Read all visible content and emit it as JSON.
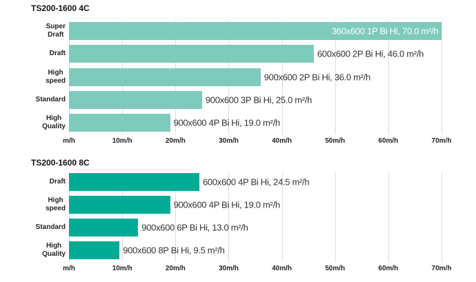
{
  "chart_data": [
    {
      "type": "bar",
      "orientation": "horizontal",
      "title": "TS200-1600 4C",
      "categories": [
        "Super Draft",
        "Draft",
        "High speed",
        "Standard",
        "High Quality"
      ],
      "values": [
        70,
        46,
        36,
        25,
        19
      ],
      "value_labels": [
        "360x600 1P Bi Hi, 70.0 m²/h",
        "600x600 2P Bi Hi, 46.0 m²/h",
        "900x600 2P Bi Hi, 36.0 m²/h",
        "900x600 3P Bi Hi, 25.0 m²/h",
        "900x600 4P Bi Hi, 19.0 m²/h"
      ],
      "color": "#7ecbbb",
      "xlim": [
        0,
        70
      ],
      "xticks": [
        {
          "value": 0,
          "label": "m/h"
        },
        {
          "value": 10,
          "label": "10m/h"
        },
        {
          "value": 20,
          "label": "20m/h"
        },
        {
          "value": 30,
          "label": "30m/h"
        },
        {
          "value": 40,
          "label": "40m/h"
        },
        {
          "value": 50,
          "label": "50m/h"
        },
        {
          "value": 60,
          "label": "60m/h"
        },
        {
          "value": 70,
          "label": "70m/h"
        }
      ],
      "grid": true
    },
    {
      "type": "bar",
      "orientation": "horizontal",
      "title": "TS200-1600 8C",
      "categories": [
        "Draft",
        "High speed",
        "Standard",
        "High Quality"
      ],
      "values": [
        24.5,
        19,
        13,
        9.5
      ],
      "value_labels": [
        "600x600 4P Bi Hi, 24.5 m²/h",
        "900x600 4P Bi Hi, 19.0 m²/h",
        "900x600 6P Bi Hi, 13.0 m²/h",
        "900x600 8P Bi Hi, 9.5 m²/h"
      ],
      "color": "#00ab96",
      "xlim": [
        0,
        70
      ],
      "xticks": [
        {
          "value": 0,
          "label": "m/h"
        },
        {
          "value": 10,
          "label": "10m/h"
        },
        {
          "value": 20,
          "label": "20m/h"
        },
        {
          "value": 30,
          "label": "30m/h"
        },
        {
          "value": 40,
          "label": "40m/h"
        },
        {
          "value": 50,
          "label": "50m/h"
        },
        {
          "value": 60,
          "label": "60m/h"
        },
        {
          "value": 70,
          "label": "70m/h"
        }
      ],
      "grid": true
    }
  ]
}
